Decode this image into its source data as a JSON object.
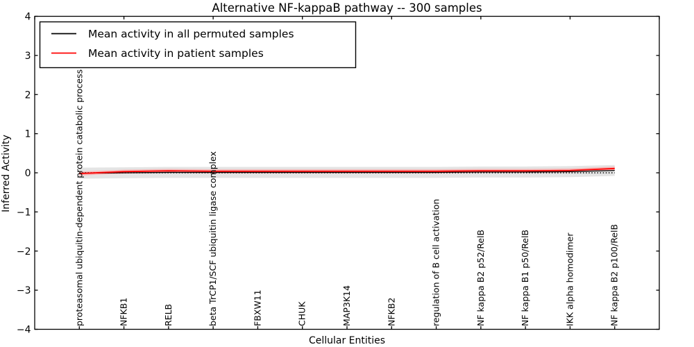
{
  "figure": {
    "background": "#ffffff",
    "text_color": "#000000"
  },
  "chart_data": {
    "type": "line",
    "title": "Alternative NF-kappaB pathway -- 300 samples",
    "xlabel": "Cellular Entities",
    "ylabel": "Inferred Activity",
    "xlim": [
      0,
      14
    ],
    "ylim": [
      -4,
      4
    ],
    "grid": false,
    "legend_position": "upper left",
    "yticks": [
      {
        "value": -4,
        "label": "−4"
      },
      {
        "value": -3,
        "label": "−3"
      },
      {
        "value": -2,
        "label": "−2"
      },
      {
        "value": -1,
        "label": "−1"
      },
      {
        "value": 0,
        "label": "0"
      },
      {
        "value": 1,
        "label": "1"
      },
      {
        "value": 2,
        "label": "2"
      },
      {
        "value": 3,
        "label": "3"
      },
      {
        "value": 4,
        "label": "4"
      }
    ],
    "top_xticks": [
      0,
      2,
      4,
      6,
      8,
      10,
      12,
      14
    ],
    "x": [
      1,
      2,
      3,
      4,
      5,
      6,
      7,
      8,
      9,
      10,
      11,
      12,
      13
    ],
    "categories": [
      "proteasomal ubiquitin-dependent protein catabolic process",
      "NFKB1",
      "RELB",
      "beta TrCP1/SCF ubiquitin ligase complex",
      "FBXW11",
      "CHUK",
      "MAP3K14",
      "NFKB2",
      "regulation of B cell activation",
      "NF kappa B2 p52/RelB",
      "NF kappa B1 p50/RelB",
      "IKK alpha homodimer",
      "NF kappa B2 p100/RelB"
    ],
    "series": [
      {
        "name": "Mean activity in all permuted samples",
        "color": "#000000",
        "line_width": 1.3,
        "values": [
          -0.01,
          0.0,
          0.01,
          0.01,
          0.01,
          0.01,
          0.01,
          0.01,
          0.01,
          0.02,
          0.02,
          0.03,
          0.06
        ],
        "band_halfwidth": 0.14,
        "band_color": "#e4e4e4"
      },
      {
        "name": "Mean activity in patient samples",
        "color": "#ff0000",
        "line_width": 1.8,
        "values": [
          -0.02,
          0.03,
          0.05,
          0.04,
          0.04,
          0.04,
          0.04,
          0.04,
          0.04,
          0.05,
          0.05,
          0.06,
          0.11
        ],
        "band_halfwidth": 0.05,
        "band_color": "#f5b8b8"
      }
    ],
    "baseline": {
      "value": 0,
      "style": "dotted",
      "color": "#000000"
    }
  }
}
